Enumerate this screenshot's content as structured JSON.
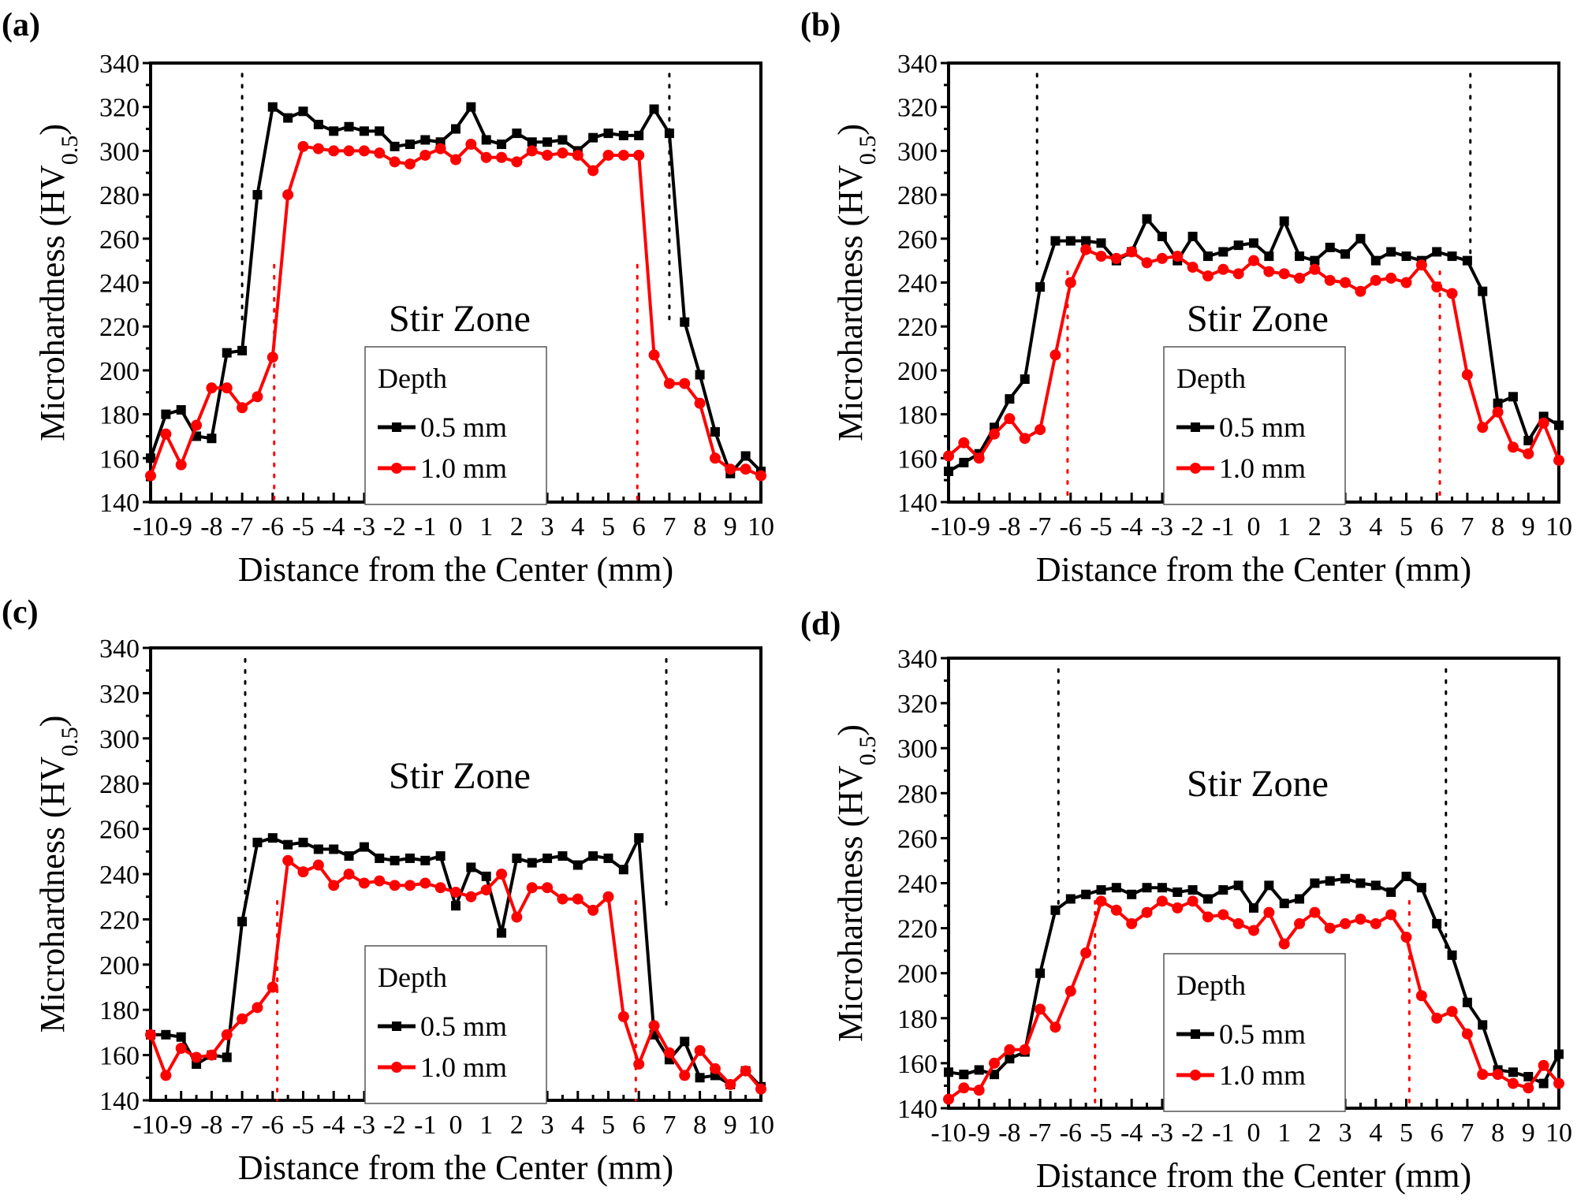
{
  "figure": {
    "panels": [
      "(a)",
      "(b)",
      "(c)",
      "(d)"
    ]
  },
  "chart_data": [
    {
      "type": "line",
      "panel_label": "(a)",
      "xlabel": "Distance from the Center (mm)",
      "ylabel": "Microhardness (HV",
      "ylabel_sub": "0.5",
      "ylabel_close": ")",
      "xlim": [
        -10,
        10
      ],
      "ylim": [
        140,
        340
      ],
      "xticks": [
        -10,
        -9,
        -8,
        -7,
        -6,
        -5,
        -4,
        -3,
        -2,
        -1,
        0,
        1,
        2,
        3,
        4,
        5,
        6,
        7,
        8,
        9,
        10
      ],
      "yticks": [
        140,
        160,
        180,
        200,
        220,
        240,
        260,
        280,
        300,
        320,
        340
      ],
      "annotation": "Stir Zone",
      "legend": {
        "title": "Depth",
        "placement": "center-bottom"
      },
      "vlines": [
        {
          "x": -7.0,
          "color": "#000000",
          "style": "dotted",
          "y_from": 220,
          "y_to": 335
        },
        {
          "x": 7.0,
          "color": "#000000",
          "style": "dotted",
          "y_from": 220,
          "y_to": 335
        },
        {
          "x": -5.95,
          "color": "#ff0000",
          "style": "dotted",
          "y_from": 140,
          "y_to": 248
        },
        {
          "x": 5.95,
          "color": "#ff0000",
          "style": "dotted",
          "y_from": 140,
          "y_to": 248
        }
      ],
      "x": [
        -10,
        -9.5,
        -9,
        -8.5,
        -8,
        -7.5,
        -7,
        -6.5,
        -6,
        -5.5,
        -5,
        -4.5,
        -4,
        -3.5,
        -3,
        -2.5,
        -2,
        -1.5,
        -1,
        -0.5,
        0,
        0.5,
        1,
        1.5,
        2,
        2.5,
        3,
        3.5,
        4,
        4.5,
        5,
        5.5,
        6,
        6.5,
        7,
        7.5,
        8,
        8.5,
        9,
        9.5,
        10
      ],
      "series": [
        {
          "name": "0.5 mm",
          "color": "#000000",
          "marker": "square",
          "values": [
            160,
            180,
            182,
            170,
            169,
            208,
            209,
            280,
            320,
            315,
            318,
            312,
            309,
            311,
            309,
            309,
            302,
            303,
            305,
            304,
            310,
            320,
            305,
            303,
            308,
            304,
            304,
            305,
            300,
            306,
            308,
            307,
            307,
            319,
            308,
            222,
            198,
            172,
            153,
            161,
            154
          ]
        },
        {
          "name": "1.0 mm",
          "color": "#ff0000",
          "marker": "circle",
          "values": [
            152,
            171,
            157,
            175,
            192,
            192,
            183,
            188,
            206,
            280,
            302,
            301,
            300,
            300,
            300,
            299,
            295,
            294,
            298,
            301,
            296,
            303,
            297,
            297,
            295,
            300,
            298,
            299,
            298,
            291,
            298,
            298,
            298,
            207,
            194,
            194,
            185,
            160,
            155,
            155,
            152
          ]
        }
      ]
    },
    {
      "type": "line",
      "panel_label": "(b)",
      "xlabel": "Distance from the Center (mm)",
      "ylabel": "Microhardness (HV",
      "ylabel_sub": "0.5",
      "ylabel_close": ")",
      "xlim": [
        -10,
        10
      ],
      "ylim": [
        140,
        340
      ],
      "xticks": [
        -10,
        -9,
        -8,
        -7,
        -6,
        -5,
        -4,
        -3,
        -2,
        -1,
        0,
        1,
        2,
        3,
        4,
        5,
        6,
        7,
        8,
        9,
        10
      ],
      "yticks": [
        140,
        160,
        180,
        200,
        220,
        240,
        260,
        280,
        300,
        320,
        340
      ],
      "annotation": "Stir Zone",
      "legend": {
        "title": "Depth",
        "placement": "center-bottom"
      },
      "vlines": [
        {
          "x": -7.1,
          "color": "#000000",
          "style": "dotted",
          "y_from": 245,
          "y_to": 335
        },
        {
          "x": 7.1,
          "color": "#000000",
          "style": "dotted",
          "y_from": 245,
          "y_to": 335
        },
        {
          "x": -6.1,
          "color": "#ff0000",
          "style": "dotted",
          "y_from": 140,
          "y_to": 245
        },
        {
          "x": 6.1,
          "color": "#ff0000",
          "style": "dotted",
          "y_from": 140,
          "y_to": 245
        }
      ],
      "x": [
        -10,
        -9.5,
        -9,
        -8.5,
        -8,
        -7.5,
        -7,
        -6.5,
        -6,
        -5.5,
        -5,
        -4.5,
        -4,
        -3.5,
        -3,
        -2.5,
        -2,
        -1.5,
        -1,
        -0.5,
        0,
        0.5,
        1,
        1.5,
        2,
        2.5,
        3,
        3.5,
        4,
        4.5,
        5,
        5.5,
        6,
        6.5,
        7,
        7.5,
        8,
        8.5,
        9,
        9.5,
        10
      ],
      "series": [
        {
          "name": "0.5 mm",
          "color": "#000000",
          "marker": "square",
          "values": [
            154,
            158,
            162,
            174,
            187,
            196,
            238,
            259,
            259,
            259,
            258,
            250,
            254,
            269,
            261,
            250,
            261,
            252,
            254,
            257,
            258,
            252,
            268,
            252,
            250,
            256,
            253,
            260,
            250,
            254,
            252,
            250,
            254,
            252,
            250,
            236,
            185,
            188,
            168,
            179,
            175
          ]
        },
        {
          "name": "1.0 mm",
          "color": "#ff0000",
          "marker": "circle",
          "values": [
            161,
            167,
            160,
            171,
            178,
            169,
            173,
            207,
            240,
            255,
            252,
            251,
            254,
            249,
            251,
            252,
            247,
            243,
            246,
            244,
            250,
            245,
            244,
            242,
            246,
            241,
            240,
            236,
            241,
            242,
            240,
            248,
            238,
            235,
            198,
            174,
            181,
            165,
            162,
            176,
            159
          ]
        }
      ]
    },
    {
      "type": "line",
      "panel_label": "(c)",
      "xlabel": "Distance from the Center (mm)",
      "ylabel": "Microhardness (HV",
      "ylabel_sub": "0.5",
      "ylabel_close": ")",
      "xlim": [
        -10,
        10
      ],
      "ylim": [
        140,
        340
      ],
      "xticks": [
        -10,
        -9,
        -8,
        -7,
        -6,
        -5,
        -4,
        -3,
        -2,
        -1,
        0,
        1,
        2,
        3,
        4,
        5,
        6,
        7,
        8,
        9,
        10
      ],
      "yticks": [
        140,
        160,
        180,
        200,
        220,
        240,
        260,
        280,
        300,
        320,
        340
      ],
      "annotation": "Stir Zone",
      "legend": {
        "title": "Depth",
        "placement": "center-bottom"
      },
      "vlines": [
        {
          "x": -6.9,
          "color": "#000000",
          "style": "dotted",
          "y_from": 225,
          "y_to": 335
        },
        {
          "x": 6.9,
          "color": "#000000",
          "style": "dotted",
          "y_from": 225,
          "y_to": 335
        },
        {
          "x": -5.85,
          "color": "#ff0000",
          "style": "dotted",
          "y_from": 140,
          "y_to": 228
        },
        {
          "x": 5.9,
          "color": "#ff0000",
          "style": "dotted",
          "y_from": 140,
          "y_to": 228
        }
      ],
      "x": [
        -10,
        -9.5,
        -9,
        -8.5,
        -8,
        -7.5,
        -7,
        -6.5,
        -6,
        -5.5,
        -5,
        -4.5,
        -4,
        -3.5,
        -3,
        -2.5,
        -2,
        -1.5,
        -1,
        -0.5,
        0,
        0.5,
        1,
        1.5,
        2,
        2.5,
        3,
        3.5,
        4,
        4.5,
        5,
        5.5,
        6,
        6.5,
        7,
        7.5,
        8,
        8.5,
        9,
        9.5,
        10
      ],
      "series": [
        {
          "name": "0.5 mm",
          "color": "#000000",
          "marker": "square",
          "values": [
            169,
            169,
            168,
            156,
            160,
            159,
            219,
            254,
            256,
            253,
            254,
            251,
            251,
            248,
            252,
            247,
            246,
            247,
            246,
            248,
            226,
            243,
            239,
            214,
            247,
            245,
            247,
            248,
            244,
            248,
            247,
            242,
            256,
            169,
            158,
            166,
            150,
            151,
            147,
            153,
            146
          ]
        },
        {
          "name": "1.0 mm",
          "color": "#ff0000",
          "marker": "circle",
          "values": [
            169,
            151,
            163,
            159,
            160,
            169,
            176,
            181,
            190,
            246,
            241,
            244,
            235,
            240,
            236,
            237,
            235,
            235,
            236,
            234,
            232,
            230,
            233,
            240,
            221,
            234,
            234,
            229,
            229,
            224,
            230,
            177,
            156,
            173,
            161,
            151,
            162,
            154,
            147,
            153,
            145
          ]
        }
      ]
    },
    {
      "type": "line",
      "panel_label": "(d)",
      "xlabel": "Distance from the Center (mm)",
      "ylabel": "Microhardness (HV",
      "ylabel_sub": "0.5",
      "ylabel_close": ")",
      "xlim": [
        -10,
        10
      ],
      "ylim": [
        140,
        340
      ],
      "xticks": [
        -10,
        -9,
        -8,
        -7,
        -6,
        -5,
        -4,
        -3,
        -2,
        -1,
        0,
        1,
        2,
        3,
        4,
        5,
        6,
        7,
        8,
        9,
        10
      ],
      "yticks": [
        140,
        160,
        180,
        200,
        220,
        240,
        260,
        280,
        300,
        320,
        340
      ],
      "annotation": "Stir Zone",
      "legend": {
        "title": "Depth",
        "placement": "center-bottom"
      },
      "vlines": [
        {
          "x": -6.4,
          "color": "#000000",
          "style": "dotted",
          "y_from": 230,
          "y_to": 335
        },
        {
          "x": 6.3,
          "color": "#000000",
          "style": "dotted",
          "y_from": 210,
          "y_to": 335
        },
        {
          "x": -5.2,
          "color": "#ff0000",
          "style": "dotted",
          "y_from": 140,
          "y_to": 232
        },
        {
          "x": 5.1,
          "color": "#ff0000",
          "style": "dotted",
          "y_from": 140,
          "y_to": 232
        }
      ],
      "x": [
        -10,
        -9.5,
        -9,
        -8.5,
        -8,
        -7.5,
        -7,
        -6.5,
        -6,
        -5.5,
        -5,
        -4.5,
        -4,
        -3.5,
        -3,
        -2.5,
        -2,
        -1.5,
        -1,
        -0.5,
        0,
        0.5,
        1,
        1.5,
        2,
        2.5,
        3,
        3.5,
        4,
        4.5,
        5,
        5.5,
        6,
        6.5,
        7,
        7.5,
        8,
        8.5,
        9,
        9.5,
        10
      ],
      "series": [
        {
          "name": "0.5 mm",
          "color": "#000000",
          "marker": "square",
          "values": [
            156,
            155,
            157,
            155,
            162,
            165,
            200,
            228,
            233,
            235,
            237,
            238,
            235,
            238,
            238,
            236,
            237,
            233,
            237,
            239,
            229,
            239,
            231,
            233,
            240,
            241,
            242,
            240,
            239,
            236,
            243,
            238,
            222,
            208,
            187,
            177,
            157,
            156,
            154,
            151,
            164
          ]
        },
        {
          "name": "1.0 mm",
          "color": "#ff0000",
          "marker": "circle",
          "values": [
            144,
            149,
            148,
            160,
            166,
            166,
            184,
            176,
            192,
            209,
            232,
            228,
            222,
            227,
            232,
            229,
            232,
            225,
            226,
            222,
            219,
            227,
            213,
            222,
            227,
            220,
            222,
            224,
            222,
            226,
            216,
            190,
            180,
            183,
            173,
            155,
            155,
            151,
            149,
            159,
            151
          ]
        }
      ]
    }
  ]
}
